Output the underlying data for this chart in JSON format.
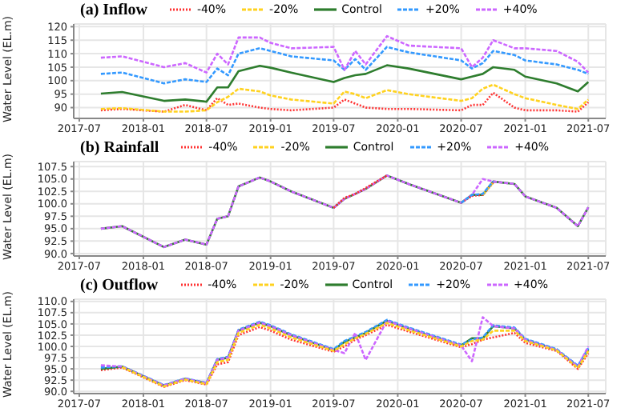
{
  "chart_data": [
    {
      "type": "line",
      "title": "(a) Inflow",
      "ylabel": "Water Level (EL.m)",
      "x": [
        "2017-09",
        "2017-11",
        "2018-03",
        "2018-05",
        "2018-07",
        "2018-08",
        "2018-09",
        "2018-10",
        "2018-12",
        "2019-01",
        "2019-03",
        "2019-07",
        "2019-08",
        "2019-09",
        "2019-10",
        "2019-12",
        "2020-02",
        "2020-07",
        "2020-08",
        "2020-09",
        "2020-10",
        "2020-12",
        "2021-01",
        "2021-04",
        "2021-06",
        "2021-07"
      ],
      "xlim": [
        "2017-06-15",
        "2021-08-20"
      ],
      "xticks": [
        "2017-07",
        "2018-01",
        "2018-07",
        "2019-01",
        "2019-07",
        "2020-01",
        "2020-07",
        "2021-01",
        "2021-07"
      ],
      "ylim": [
        86,
        121
      ],
      "yticks": [
        90,
        95,
        100,
        105,
        110,
        115,
        120
      ],
      "grid": true,
      "legend": "top",
      "marker": "none",
      "series": [
        {
          "name": "-40%",
          "color": "#ff3333",
          "line_style": "dotted",
          "values": [
            89,
            89.5,
            88.5,
            91,
            89,
            93.5,
            91,
            91.5,
            90,
            89.5,
            89,
            90,
            93,
            91.5,
            90,
            89.5,
            89.5,
            89,
            91,
            91,
            95.5,
            90,
            89,
            89,
            88.5,
            92
          ]
        },
        {
          "name": "-20%",
          "color": "#ffd21f",
          "line_style": "dashed",
          "values": [
            89.5,
            89.8,
            88.5,
            88.5,
            89,
            92,
            94,
            97,
            96,
            94.5,
            93,
            91.5,
            96,
            95,
            93.5,
            96.5,
            95,
            92.5,
            93.5,
            97,
            98.5,
            95,
            93.5,
            91,
            89.5,
            93
          ]
        },
        {
          "name": "Control",
          "color": "#2e7d2e",
          "line_style": "solid",
          "values": [
            95.2,
            95.8,
            92.5,
            93,
            92.2,
            97.5,
            97.5,
            103.5,
            105.5,
            104.8,
            103,
            99.5,
            101,
            102,
            102.5,
            105.7,
            104.5,
            100.5,
            101.5,
            102.5,
            105,
            104,
            101.5,
            99,
            96,
            99.5
          ]
        },
        {
          "name": "+20%",
          "color": "#3399ff",
          "line_style": "dashed",
          "values": [
            102.5,
            103,
            99,
            100.5,
            99.5,
            104.5,
            102,
            110,
            112,
            111,
            109,
            107.5,
            104,
            108,
            104,
            112.5,
            110.5,
            107.5,
            104.5,
            106.5,
            111,
            109.5,
            107.5,
            106,
            104,
            102.5
          ]
        },
        {
          "name": "+40%",
          "color": "#cc66ff",
          "line_style": "dashed",
          "values": [
            108.5,
            109,
            105,
            106.5,
            103,
            110,
            106,
            116,
            116,
            114,
            112,
            112.5,
            104,
            111,
            106,
            116.5,
            113,
            112,
            105,
            108.5,
            115,
            112,
            112,
            111,
            107,
            103
          ]
        }
      ]
    },
    {
      "type": "line",
      "title": "(b) Rainfall",
      "ylabel": "Water Level (EL.m)",
      "x": [
        "2017-09",
        "2017-11",
        "2018-03",
        "2018-05",
        "2018-07",
        "2018-08",
        "2018-09",
        "2018-10",
        "2018-12",
        "2019-01",
        "2019-03",
        "2019-07",
        "2019-08",
        "2019-09",
        "2019-10",
        "2019-12",
        "2020-02",
        "2020-07",
        "2020-08",
        "2020-09",
        "2020-10",
        "2020-12",
        "2021-01",
        "2021-04",
        "2021-06",
        "2021-07"
      ],
      "xlim": [
        "2017-06-15",
        "2021-08-20"
      ],
      "xticks": [
        "2017-07",
        "2018-01",
        "2018-07",
        "2019-01",
        "2019-07",
        "2020-01",
        "2020-07",
        "2021-01",
        "2021-07"
      ],
      "ylim": [
        89.5,
        108.5
      ],
      "yticks": [
        {
          "value": 90,
          "label": "90.0"
        },
        {
          "value": 92.5,
          "label": "92.5"
        },
        {
          "value": 95,
          "label": "95.0"
        },
        {
          "value": 97.5,
          "label": "97.5"
        },
        {
          "value": 100,
          "label": "100.0"
        },
        {
          "value": 102.5,
          "label": "102.5"
        },
        {
          "value": 105,
          "label": "105.0"
        },
        {
          "value": 107.5,
          "label": "107.5"
        }
      ],
      "grid": true,
      "legend": "top",
      "marker": "none",
      "series": [
        {
          "name": "-40%",
          "color": "#ff3333",
          "line_style": "dotted",
          "values": [
            null,
            null,
            null,
            null,
            null,
            null,
            null,
            null,
            null,
            null,
            null,
            99.2,
            101.2,
            102,
            103.2,
            105.7,
            null,
            100.2,
            101.6,
            101.8,
            104.2,
            null,
            null,
            null,
            null,
            null
          ]
        },
        {
          "name": "-20%",
          "color": "#ffd21f",
          "line_style": "dashed",
          "values": [
            null,
            null,
            null,
            null,
            null,
            null,
            null,
            null,
            null,
            null,
            null,
            null,
            null,
            null,
            null,
            null,
            null,
            null,
            null,
            101.8,
            104.3,
            null,
            null,
            null,
            null,
            null
          ]
        },
        {
          "name": "Control",
          "color": "#2e7d2e",
          "line_style": "solid",
          "values": [
            95,
            95.5,
            91.3,
            92.8,
            91.8,
            97,
            97.5,
            103.5,
            105.3,
            104.5,
            102.5,
            99.2,
            101,
            102,
            103,
            105.7,
            104,
            100.2,
            101.8,
            101.8,
            104.5,
            104,
            101.5,
            99.2,
            95.5,
            99.3
          ]
        },
        {
          "name": "+20%",
          "color": "#3399ff",
          "line_style": "dashed",
          "values": [
            null,
            null,
            null,
            null,
            null,
            null,
            null,
            null,
            null,
            null,
            null,
            null,
            null,
            null,
            null,
            null,
            null,
            100.2,
            101.8,
            102,
            104.5,
            null,
            null,
            null,
            null,
            null
          ]
        },
        {
          "name": "+40%",
          "color": "#cc66ff",
          "line_style": "dashed",
          "values": [
            95,
            95.5,
            91.3,
            92.8,
            91.8,
            97,
            97.5,
            103.5,
            105.3,
            104.5,
            102.5,
            99.2,
            101,
            102,
            103,
            105.7,
            104,
            100.2,
            101.8,
            105,
            104.5,
            104,
            101.5,
            99.2,
            95.5,
            99.3
          ]
        }
      ]
    },
    {
      "type": "line",
      "title": "(c) Outflow",
      "ylabel": "Water Level (EL.m)",
      "x": [
        "2017-09",
        "2017-11",
        "2018-03",
        "2018-05",
        "2018-07",
        "2018-08",
        "2018-09",
        "2018-10",
        "2018-12",
        "2019-01",
        "2019-03",
        "2019-07",
        "2019-08",
        "2019-09",
        "2019-10",
        "2019-12",
        "2020-02",
        "2020-07",
        "2020-08",
        "2020-09",
        "2020-10",
        "2020-12",
        "2021-01",
        "2021-04",
        "2021-06",
        "2021-07"
      ],
      "xlim": [
        "2017-06-15",
        "2021-08-20"
      ],
      "xticks": [
        "2017-07",
        "2018-01",
        "2018-07",
        "2019-01",
        "2019-07",
        "2020-01",
        "2020-07",
        "2021-01",
        "2021-07"
      ],
      "ylim": [
        89.5,
        110.5
      ],
      "yticks": [
        {
          "value": 90,
          "label": "90.0"
        },
        {
          "value": 92.5,
          "label": "92.5"
        },
        {
          "value": 95,
          "label": "95.0"
        },
        {
          "value": 97.5,
          "label": "97.5"
        },
        {
          "value": 100,
          "label": "100.0"
        },
        {
          "value": 102.5,
          "label": "102.5"
        },
        {
          "value": 105,
          "label": "105.0"
        },
        {
          "value": 107.5,
          "label": "107.5"
        },
        {
          "value": 110,
          "label": "110.0"
        }
      ],
      "grid": true,
      "legend": "top",
      "marker": "none",
      "series": [
        {
          "name": "-40%",
          "color": "#ff3333",
          "line_style": "dotted",
          "values": [
            94.7,
            95.3,
            91,
            92.5,
            91.5,
            96,
            96.5,
            102.5,
            104.3,
            103.5,
            101.5,
            98.8,
            100,
            101.5,
            102.5,
            104.8,
            103.3,
            99.8,
            100.5,
            101.5,
            102,
            103,
            100.8,
            99,
            95,
            98.5
          ]
        },
        {
          "name": "-20%",
          "color": "#ffd21f",
          "line_style": "dashed",
          "values": [
            null,
            95.4,
            91.1,
            92.6,
            91.6,
            96.5,
            97,
            103,
            104.8,
            104,
            102,
            99,
            100.5,
            101.8,
            102.8,
            105.2,
            103.6,
            100,
            101.2,
            101.5,
            103.5,
            103.5,
            101.2,
            99.1,
            95.2,
            99
          ]
        },
        {
          "name": "Control",
          "color": "#2e7d2e",
          "line_style": "solid",
          "values": [
            95,
            95.5,
            91.3,
            92.8,
            91.8,
            97,
            97.5,
            103.5,
            105.3,
            104.5,
            102.5,
            99.2,
            101,
            102,
            103,
            105.7,
            104,
            100.2,
            101.8,
            101.8,
            104.5,
            104,
            101.5,
            99.2,
            95.5,
            99.3
          ]
        },
        {
          "name": "+20%",
          "color": "#3399ff",
          "line_style": "dashed",
          "values": [
            95.3,
            95.6,
            91.4,
            92.9,
            91.9,
            97.2,
            97.7,
            103.7,
            105.5,
            104.7,
            102.7,
            99.4,
            101.2,
            102.2,
            103.2,
            105.9,
            104.2,
            100.4,
            101.5,
            102,
            104.7,
            104.2,
            101.7,
            99.4,
            95.7,
            99.6
          ]
        },
        {
          "name": "+40%",
          "color": "#cc66ff",
          "line_style": "dashed",
          "values": [
            95.8,
            95.5,
            91.3,
            92.8,
            91.8,
            97,
            97.5,
            103.5,
            105.3,
            104.5,
            102.5,
            99.2,
            98.5,
            103,
            97,
            105.7,
            104,
            100.2,
            96.7,
            106.5,
            104.5,
            104,
            101.5,
            99.2,
            95.5,
            100
          ]
        }
      ]
    }
  ]
}
